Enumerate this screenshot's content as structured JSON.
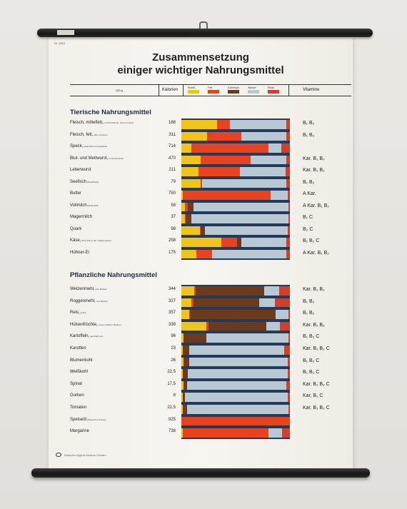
{
  "poster": {
    "number": "Nr. 3010",
    "title_line1": "Zusammensetzung",
    "title_line2": "einiger wichtiger Nahrungsmittel",
    "header": {
      "portion": "100 g",
      "kalorien": "Kalorien",
      "vitamine": "Vitamine"
    },
    "legend": [
      {
        "name": "Eiweiß",
        "color": "#f2c418"
      },
      {
        "name": "Fett",
        "color": "#e8431e"
      },
      {
        "name": "Kohlehydr.",
        "color": "#6e3a1c"
      },
      {
        "name": "Wasser",
        "color": "#b9c9d4"
      },
      {
        "name": "Reste",
        "color": "#d1402a"
      }
    ],
    "sections": [
      {
        "title": "Tierische Nahrungsmittel",
        "rows": [
          {
            "name": "Fleisch, mittelfett,",
            "note": "im Durchschnitt, ohne Knochen",
            "kcal": "188",
            "vit": "B₁ B₂",
            "p": [
              0.33,
              0.12,
              0.0,
              0.52,
              0.03
            ]
          },
          {
            "name": "Fleisch, fett,",
            "note": "ohne Knochen",
            "kcal": "311",
            "vit": "B₁ B₂",
            "p": [
              0.24,
              0.31,
              0.0,
              0.42,
              0.03
            ]
          },
          {
            "name": "Speck,",
            "note": "geräuchert und gesalzen",
            "kcal": "714",
            "vit": "",
            "p": [
              0.09,
              0.71,
              0.0,
              0.12,
              0.08
            ]
          },
          {
            "name": "Blut- und Mettwurst,",
            "note": "im Durchschnitt",
            "kcal": "470",
            "vit": "Kar. B₁ B₂",
            "p": [
              0.18,
              0.46,
              0.0,
              0.33,
              0.03
            ]
          },
          {
            "name": "Leberwurst",
            "note": "",
            "kcal": "211",
            "vit": "Kar. B₁ B₂",
            "p": [
              0.16,
              0.38,
              0.0,
              0.42,
              0.04
            ]
          },
          {
            "name": "Seefisch",
            "note": "(Frischfisch)",
            "kcal": "79",
            "vit": "B₁ B₂",
            "p": [
              0.18,
              0.01,
              0.0,
              0.78,
              0.03
            ]
          },
          {
            "name": "Butter",
            "note": "",
            "kcal": "750",
            "vit": "A Kar.",
            "p": [
              0.01,
              0.81,
              0.0,
              0.16,
              0.02
            ]
          },
          {
            "name": "Vollmilch",
            "note": "(Markmilch)",
            "kcal": "58",
            "vit": "A Kar. B₁ B₂",
            "p": [
              0.03,
              0.03,
              0.05,
              0.88,
              0.01
            ]
          },
          {
            "name": "Magermilch",
            "note": "",
            "kcal": "37",
            "vit": "B₁ C",
            "p": [
              0.03,
              0.01,
              0.05,
              0.9,
              0.01
            ]
          },
          {
            "name": "Quark",
            "note": "",
            "kcal": "98",
            "vit": "B₂ C",
            "p": [
              0.17,
              0.01,
              0.04,
              0.76,
              0.02
            ]
          },
          {
            "name": "Käse,",
            "note": "20 % Fett in der Trockenmasse",
            "kcal": "258",
            "vit": "B₁ B₂ C",
            "p": [
              0.37,
              0.14,
              0.04,
              0.42,
              0.03
            ]
          },
          {
            "name": "Hühner-Ei",
            "note": "",
            "kcal": "175",
            "vit": "A Kar. B₁ B₂",
            "p": [
              0.14,
              0.14,
              0.0,
              0.69,
              0.03
            ]
          }
        ]
      },
      {
        "title": "Pflanzliche Nahrungsmittel",
        "rows": [
          {
            "name": "Weizenmehl,",
            "note": "zum Backen",
            "kcal": "344",
            "vit": "Kar. B₁ B₂",
            "p": [
              0.12,
              0.01,
              0.63,
              0.14,
              0.1
            ]
          },
          {
            "name": "Roggenmehl,",
            "note": "zum Backen",
            "kcal": "327",
            "vit": "B₁ B₂",
            "p": [
              0.09,
              0.02,
              0.61,
              0.14,
              0.14
            ]
          },
          {
            "name": "Reis,",
            "note": "poliert",
            "kcal": "357",
            "vit": "B₁ B₂",
            "p": [
              0.07,
              0.01,
              0.79,
              0.12,
              0.01
            ]
          },
          {
            "name": "Hülsenfrüchte,",
            "note": "Linsen, Erbsen, Bohnen",
            "kcal": "339",
            "vit": "Kar. B₁ B₂",
            "p": [
              0.23,
              0.02,
              0.53,
              0.13,
              0.09
            ]
          },
          {
            "name": "Kartoffeln,",
            "note": "geschält (roh)",
            "kcal": "96",
            "vit": "B₁ B₂ C",
            "p": [
              0.02,
              0.0,
              0.21,
              0.76,
              0.01
            ]
          },
          {
            "name": "Karotten",
            "note": "",
            "kcal": "23",
            "vit": "Kar. B₁ B₂ C",
            "p": [
              0.01,
              0.0,
              0.06,
              0.88,
              0.05
            ]
          },
          {
            "name": "Blumenkohl",
            "note": "",
            "kcal": "26",
            "vit": "B₁ B₂ C",
            "p": [
              0.02,
              0.0,
              0.05,
              0.91,
              0.02
            ]
          },
          {
            "name": "Weißkohl",
            "note": "",
            "kcal": "22,5",
            "vit": "B₁ B₂ C",
            "p": [
              0.01,
              0.0,
              0.05,
              0.92,
              0.02
            ]
          },
          {
            "name": "Spinat",
            "note": "",
            "kcal": "17,5",
            "vit": "Kar. B₁ B₂ C",
            "p": [
              0.02,
              0.0,
              0.03,
              0.92,
              0.03
            ]
          },
          {
            "name": "Gurken",
            "note": "",
            "kcal": "8",
            "vit": "Kar. B₁ C",
            "p": [
              0.01,
              0.0,
              0.02,
              0.95,
              0.02
            ]
          },
          {
            "name": "Tomaten",
            "note": "",
            "kcal": "22,5",
            "vit": "Kar. B₁ B₂ C",
            "p": [
              0.01,
              0.0,
              0.04,
              0.94,
              0.01
            ]
          },
          {
            "name": "Speiseöl",
            "note": "(Olivenöl und dergl.)",
            "kcal": "925",
            "vit": "",
            "p": [
              0.0,
              1.0,
              0.0,
              0.0,
              0.0
            ]
          },
          {
            "name": "Margarine",
            "note": "",
            "kcal": "738",
            "vit": "",
            "p": [
              0.01,
              0.79,
              0.0,
              0.13,
              0.07
            ]
          }
        ]
      }
    ],
    "footer": "Deutscher Hygiene-Museum Dresden"
  }
}
